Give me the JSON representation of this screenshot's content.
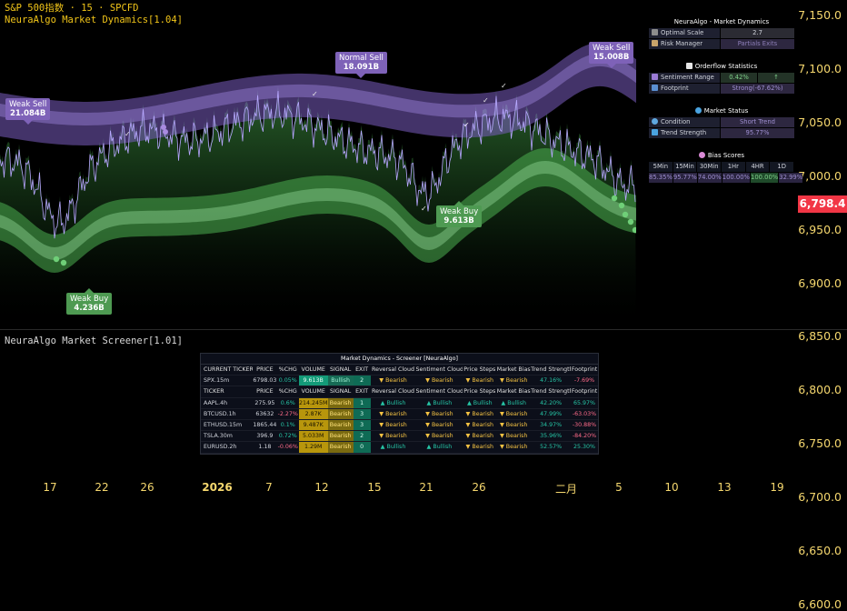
{
  "header": {
    "symbol_line": "S&P 500指数 · 15 · SPCFD",
    "indicator_line": "NeuraAlgo Market Dynamics[1.04]"
  },
  "price_axis": {
    "ticks": [
      "7,150.0",
      "7,100.0",
      "7,050.0",
      "7,000.0",
      "6,950.0",
      "6,900.0",
      "6,850.0",
      "6,800.0",
      "6,750.0",
      "6,700.0",
      "6,650.0",
      "6,600.0"
    ],
    "current_price": "6,798.4",
    "current_price_color": "#f23645"
  },
  "time_axis": {
    "ticks": [
      "17",
      "22",
      "26",
      "2026",
      "7",
      "12",
      "15",
      "21",
      "26",
      "二月",
      "5",
      "10",
      "13",
      "19"
    ]
  },
  "labels": {
    "weak_sell_left": {
      "title": "Weak Sell",
      "value": "21.084B"
    },
    "normal_sell": {
      "title": "Normal Sell",
      "value": "18.091B"
    },
    "weak_sell_right": {
      "title": "Weak Sell",
      "value": "15.008B"
    },
    "weak_buy_left": {
      "title": "Weak Buy",
      "value": "4.236B"
    },
    "weak_buy_mid": {
      "title": "Weak Buy",
      "value": "9.613B"
    }
  },
  "dynamics_panel": {
    "title": "NeuraAlgo - Market Dynamics",
    "rows": [
      {
        "key": "Optimal Scale",
        "value": "2.7"
      },
      {
        "key": "Risk Manager",
        "value": "Partials Exits"
      }
    ]
  },
  "orderflow_panel": {
    "title": "Orderflow Statistics",
    "rows": [
      {
        "key": "Sentiment Range",
        "value": "0.42%",
        "extra": "↑"
      },
      {
        "key": "Footprint",
        "value": "Strong(-67.62%)"
      }
    ]
  },
  "status_panel": {
    "title": "Market Status",
    "rows": [
      {
        "key": "Condition",
        "value": "Short Trend"
      },
      {
        "key": "Trend Strength",
        "value": "95.77%"
      }
    ]
  },
  "bias_panel": {
    "title": "Bias Scores",
    "timeframes": [
      "5Min",
      "15Min",
      "30Min",
      "1Hr",
      "4HR",
      "1D"
    ],
    "values": [
      "85.35%",
      "95.77%",
      "74.00%",
      "100.00%",
      "100.00%",
      "32.99%"
    ]
  },
  "screener": {
    "pane_label": "NeuraAlgo Market Screener[1.01]",
    "title": "Market Dynamics - Screener [NeuraAlgo]",
    "columns": [
      "CURRENT TICKER",
      "PRICE",
      "%CHG",
      "VOLUME",
      "SIGNAL",
      "EXIT",
      "Reversal Cloud",
      "Sentiment Cloud",
      "Price Steps",
      "Market Bias",
      "Trend Strength",
      "Footprint"
    ],
    "current": [
      "SPX.15m",
      "6798.03",
      "0.05%",
      "9.613B",
      "Bullish",
      "2",
      "▼ Bearish",
      "▼ Bearish",
      "▼ Bearish",
      "▼ Bearish",
      "47.16%",
      "-7.69%"
    ],
    "columns2": [
      "TICKER",
      "PRICE",
      "%CHG",
      "VOLUME",
      "SIGNAL",
      "EXIT",
      "Reversal Cloud",
      "Sentiment Cloud",
      "Price Steps",
      "Market Bias",
      "Trend Strength",
      "Footprint"
    ],
    "rows": [
      [
        "AAPL.4h",
        "275.95",
        "0.6%",
        "214.245M",
        "Bearish",
        "1",
        "▲ Bullish",
        "▲ Bullish",
        "▲ Bullish",
        "▲ Bullish",
        "42.20%",
        "65.97%"
      ],
      [
        "BTCUSD.1h",
        "63632",
        "-2.27%",
        "2.87K",
        "Bearish",
        "3",
        "▼ Bearish",
        "▼ Bearish",
        "▼ Bearish",
        "▼ Bearish",
        "47.99%",
        "-63.03%"
      ],
      [
        "ETHUSD.15m",
        "1865.44",
        "0.1%",
        "9.487K",
        "Bearish",
        "3",
        "▼ Bearish",
        "▼ Bearish",
        "▼ Bearish",
        "▼ Bearish",
        "34.97%",
        "-30.88%"
      ],
      [
        "TSLA.30m",
        "396.9",
        "0.72%",
        "5.033M",
        "Bearish",
        "2",
        "▼ Bearish",
        "▼ Bearish",
        "▼ Bearish",
        "▼ Bearish",
        "35.96%",
        "-84.20%"
      ],
      [
        "EURUSD.2h",
        "1.18",
        "-0.06%",
        "1.29M",
        "Bearish",
        "0",
        "▲ Bullish",
        "▲ Bullish",
        "▼ Bearish",
        "▼ Bearish",
        "52.57%",
        "25.30%"
      ]
    ]
  },
  "colors": {
    "sell_band": "#8e6ccf",
    "buy_band": "#5fbf6a",
    "price_line": "#b7a6ff",
    "axis_text": "#f5d76e"
  }
}
